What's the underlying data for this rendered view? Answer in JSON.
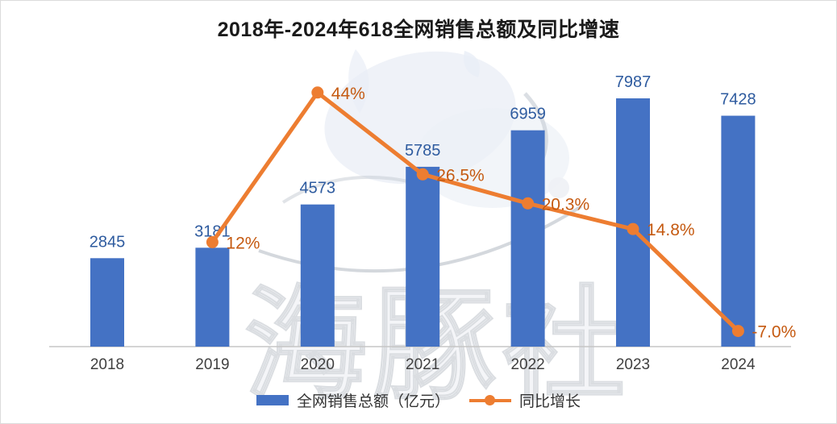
{
  "title": "2018年-2024年618全网销售总额及同比增速",
  "watermark": {
    "text": "海豚社"
  },
  "colors": {
    "bar": "#4472C4",
    "line": "#ED7D31",
    "value_label": "#2E5B9F",
    "pct_label": "#C55A11",
    "year_label": "#404040",
    "title": "#1A1A1A",
    "axis": "#C6C6C6"
  },
  "legend": {
    "bar_label": "全网销售总额（亿元）",
    "line_label": "同比增长"
  },
  "chart_data": {
    "type": "bar+line",
    "title": "2018年-2024年618全网销售总额及同比增速",
    "categories": [
      "2018",
      "2019",
      "2020",
      "2021",
      "2022",
      "2023",
      "2024"
    ],
    "series": [
      {
        "name": "全网销售总额（亿元）",
        "type": "bar",
        "color": "#4472C4",
        "values": [
          2845,
          3181,
          4573,
          5785,
          6959,
          7987,
          7428
        ],
        "data_labels": [
          "2845",
          "3181",
          "4573",
          "5785",
          "6959",
          "7987",
          "7428"
        ]
      },
      {
        "name": "同比增长",
        "type": "line",
        "color": "#ED7D31",
        "values": [
          null,
          12,
          44,
          26.5,
          20.3,
          14.8,
          -7.0
        ],
        "data_labels": [
          null,
          "12%",
          "44%",
          "26.5%",
          "20.3%",
          "14.8%",
          "-7.0%"
        ]
      }
    ],
    "bar_axis": {
      "min": 0,
      "max": 8600,
      "visible": false
    },
    "line_axis": {
      "unit": "%",
      "visible": false
    },
    "grid": false,
    "legend_position": "bottom"
  }
}
